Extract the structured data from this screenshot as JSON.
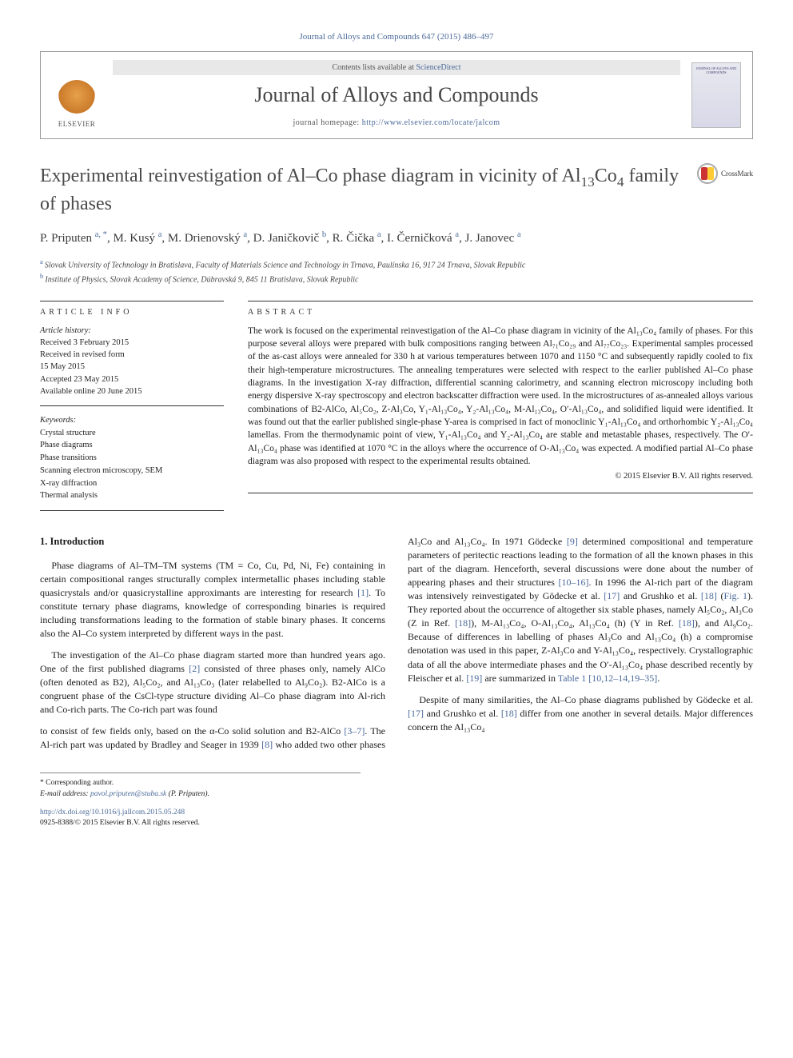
{
  "citation": "Journal of Alloys and Compounds 647 (2015) 486–497",
  "header": {
    "contents_prefix": "Contents lists available at ",
    "contents_link": "ScienceDirect",
    "journal_name": "Journal of Alloys and Compounds",
    "homepage_prefix": "journal homepage: ",
    "homepage_link": "http://www.elsevier.com/locate/jalcom",
    "elsevier_label": "ELSEVIER",
    "cover_caption": "JOURNAL OF ALLOYS AND COMPOUNDS"
  },
  "crossmark_label": "CrossMark",
  "title_parts": {
    "p1": "Experimental reinvestigation of Al–Co phase diagram in vicinity of Al",
    "sub1": "13",
    "p2": "Co",
    "sub2": "4",
    "p3": " family of phases"
  },
  "authors": [
    {
      "name": "P. Priputen",
      "aff": "a, *"
    },
    {
      "name": "M. Kusý",
      "aff": "a"
    },
    {
      "name": "M. Drienovský",
      "aff": "a"
    },
    {
      "name": "D. Janičkovič",
      "aff": "b"
    },
    {
      "name": "R. Čička",
      "aff": "a"
    },
    {
      "name": "I. Černičková",
      "aff": "a"
    },
    {
      "name": "J. Janovec",
      "aff": "a"
    }
  ],
  "affiliations": [
    {
      "label": "a",
      "text": "Slovak University of Technology in Bratislava, Faculty of Materials Science and Technology in Trnava, Paulínska 16, 917 24 Trnava, Slovak Republic"
    },
    {
      "label": "b",
      "text": "Institute of Physics, Slovak Academy of Science, Dúbravská 9, 845 11 Bratislava, Slovak Republic"
    }
  ],
  "info": {
    "heading": "ARTICLE INFO",
    "history_label": "Article history:",
    "history": [
      "Received 3 February 2015",
      "Received in revised form",
      "15 May 2015",
      "Accepted 23 May 2015",
      "Available online 20 June 2015"
    ],
    "keywords_label": "Keywords:",
    "keywords": [
      "Crystal structure",
      "Phase diagrams",
      "Phase transitions",
      "Scanning electron microscopy, SEM",
      "X-ray diffraction",
      "Thermal analysis"
    ]
  },
  "abstract": {
    "heading": "ABSTRACT",
    "text": "The work is focused on the experimental reinvestigation of the Al–Co phase diagram in vicinity of the Al₁₃Co₄ family of phases. For this purpose several alloys were prepared with bulk compositions ranging between Al₇₁Co₂₉ and Al₇₇Co₂₃. Experimental samples processed of the as-cast alloys were annealed for 330 h at various temperatures between 1070 and 1150 °C and subsequently rapidly cooled to fix their high-temperature microstructures. The annealing temperatures were selected with respect to the earlier published Al–Co phase diagrams. In the investigation X-ray diffraction, differential scanning calorimetry, and scanning electron microscopy including both energy dispersive X-ray spectroscopy and electron backscatter diffraction were used. In the microstructures of as-annealed alloys various combinations of B2-AlCo, Al₅Co₂, Z-Al₃Co, Y₁-Al₁₃Co₄, Y₂-Al₁₃Co₄, M-Al₁₃Co₄, O′-Al₁₃Co₄, and solidified liquid were identified. It was found out that the earlier published single-phase Y-area is comprised in fact of monoclinic Y₁-Al₁₃Co₄ and orthorhombic Y₂-Al₁₃Co₄ lamellas. From the thermodynamic point of view, Y₁-Al₁₃Co₄ and Y₂-Al₁₃Co₄ are stable and metastable phases, respectively. The O′-Al₁₃Co₄ phase was identified at 1070 °C in the alloys where the occurrence of O-Al₁₃Co₄ was expected. A modified partial Al–Co phase diagram was also proposed with respect to the experimental results obtained.",
    "copyright": "© 2015 Elsevier B.V. All rights reserved."
  },
  "body": {
    "heading": "1. Introduction",
    "p1a": "Phase diagrams of Al–TM–TM systems (TM = Co, Cu, Pd, Ni, Fe) containing in certain compositional ranges structurally complex intermetallic phases including stable quasicrystals and/or quasicrystalline approximants are interesting for research ",
    "r1": "[1]",
    "p1b": ". To constitute ternary phase diagrams, knowledge of corresponding binaries is required including transformations leading to the formation of stable binary phases. It concerns also the Al–Co system interpreted by different ways in the past.",
    "p2a": "The investigation of the Al–Co phase diagram started more than hundred years ago. One of the first published diagrams ",
    "r2": "[2]",
    "p2b": " consisted of three phases only, namely AlCo (often denoted as B2), Al₅Co₂, and Al₁₃Co₃ (later relabelled to Al₉Co₂). B2-AlCo is a congruent phase of the CsCl-type structure dividing Al–Co phase diagram into Al-rich and Co-rich parts. The Co-rich part was found",
    "p3a": "to consist of few fields only, based on the α-Co solid solution and B2-AlCo ",
    "r3": "[3–7]",
    "p3b": ". The Al-rich part was updated by Bradley and Seager in 1939 ",
    "r8": "[8]",
    "p3c": " who added two other phases Al₃Co and Al₁₃Co₄. In 1971 Gödecke ",
    "r9": "[9]",
    "p3d": " determined compositional and temperature parameters of peritectic reactions leading to the formation of all the known phases in this part of the diagram. Henceforth, several discussions were done about the number of appearing phases and their structures ",
    "r10": "[10–16]",
    "p3e": ". In 1996 the Al-rich part of the diagram was intensively reinvestigated by Gödecke et al. ",
    "r17": "[17]",
    "p3f": " and Grushko et al. ",
    "r18": "[18]",
    "p3g": " (",
    "fig1": "Fig. 1",
    "p3h": "). They reported about the occurrence of altogether six stable phases, namely Al₅Co₂, Al₃Co (Z in Ref. ",
    "r18b": "[18]",
    "p3i": "), M-Al₁₃Co₄, O-Al₁₃Co₄, Al₁₃Co₄ (h) (Y in Ref. ",
    "r18c": "[18]",
    "p3j": "), and Al₉Co₂. Because of differences in labelling of phases Al₃Co and Al₁₃Co₄ (h) a compromise denotation was used in this paper, Z-Al₃Co and Y-Al₁₃Co₄, respectively. Crystallographic data of all the above intermediate phases and the O′-Al₁₃Co₄ phase described recently by Fleischer et al. ",
    "r19": "[19]",
    "p3k": " are summarized in ",
    "tab1": "Table 1",
    "p3l": " ",
    "r20": "[10,12–14,19–35]",
    "p3m": ".",
    "p4a": "Despite of many similarities, the Al–Co phase diagrams published by Gödecke et al. ",
    "r17b": "[17]",
    "p4b": " and Grushko et al. ",
    "r18d": "[18]",
    "p4c": " differ from one another in several details. Major differences concern the Al₁₃Co₄"
  },
  "footer": {
    "corr": "* Corresponding author.",
    "email_label": "E-mail address: ",
    "email": "pavol.priputen@stuba.sk",
    "email_name": " (P. Priputen).",
    "doi": "http://dx.doi.org/10.1016/j.jallcom.2015.05.248",
    "issn": "0925-8388/© 2015 Elsevier B.V. All rights reserved."
  },
  "colors": {
    "link": "#4a6999",
    "text": "#1a1a1a",
    "heading": "#4a4a4a",
    "border": "#333333",
    "background": "#ffffff"
  },
  "typography": {
    "body_fontsize": 12,
    "title_fontsize": 24,
    "journal_fontsize": 26,
    "authors_fontsize": 15,
    "abstract_fontsize": 11.5,
    "info_fontsize": 10.5,
    "footer_fontsize": 9.5
  }
}
